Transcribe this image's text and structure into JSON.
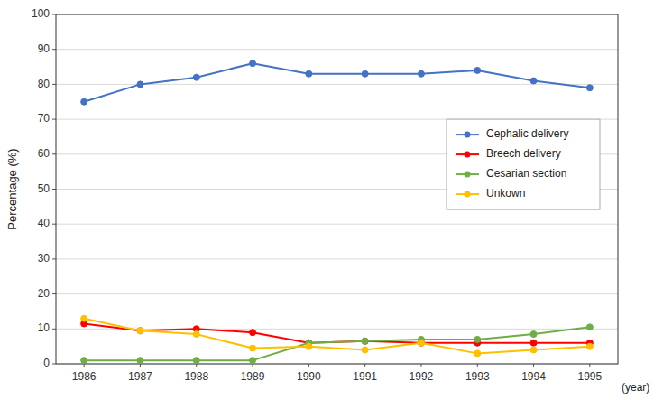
{
  "chart_data": {
    "type": "line",
    "y_label": "Percentage (%)",
    "x_label": "(year)",
    "x": [
      1986,
      1987,
      1988,
      1989,
      1990,
      1991,
      1992,
      1993,
      1994,
      1995
    ],
    "xlim": [
      1985.5,
      1995.5
    ],
    "xticks": [
      1986,
      1987,
      1988,
      1989,
      1990,
      1991,
      1992,
      1993,
      1994,
      1995
    ],
    "ylim": [
      0,
      100
    ],
    "yticks": [
      0,
      10,
      20,
      30,
      40,
      50,
      60,
      70,
      80,
      90,
      100
    ],
    "grid": "y",
    "legend": "right",
    "marker": "circle",
    "line_style": "solid",
    "series": [
      {
        "name": "Cephalic delivery",
        "color": "#4472C4",
        "values": [
          75,
          80,
          82,
          86,
          83,
          83,
          83,
          84,
          81,
          79
        ]
      },
      {
        "name": "Breech delivery",
        "color": "#FF0000",
        "values": [
          11.5,
          9.5,
          10,
          9,
          6,
          6.5,
          6,
          6,
          6,
          6
        ]
      },
      {
        "name": "Cesarian section",
        "color": "#70AD47",
        "values": [
          1,
          1,
          1,
          1,
          6,
          6.5,
          7,
          7,
          8.5,
          10.5
        ]
      },
      {
        "name": "Unkown",
        "color": "#FFC000",
        "values": [
          13,
          9.5,
          8.5,
          4.5,
          5,
          4,
          6,
          3,
          4,
          5
        ]
      }
    ]
  }
}
